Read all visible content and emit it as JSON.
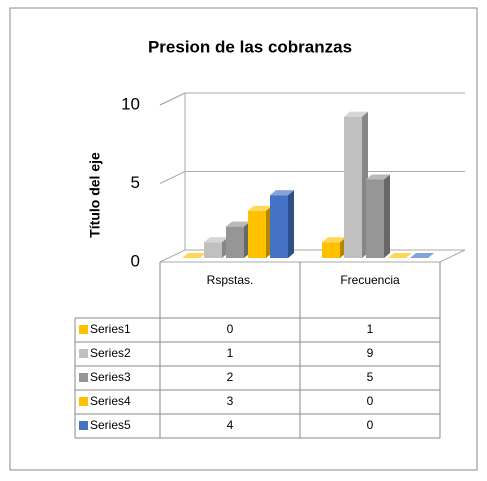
{
  "chart_data": {
    "type": "bar3d",
    "title": "Presion de las cobranzas",
    "y_label": "Título del eje",
    "categories": [
      "Rspstas.",
      "Frecuencia"
    ],
    "series": [
      {
        "name": "Series1",
        "color": "#ffc000",
        "values": [
          0,
          1
        ]
      },
      {
        "name": "Series2",
        "color": "#c0c0c0",
        "values": [
          1,
          9
        ]
      },
      {
        "name": "Series3",
        "color": "#969696",
        "values": [
          2,
          5
        ]
      },
      {
        "name": "Series4",
        "color": "#ffc000",
        "values": [
          3,
          0
        ]
      },
      {
        "name": "Series5",
        "color": "#4472c4",
        "values": [
          4,
          0
        ]
      }
    ],
    "ylim": [
      0,
      10
    ],
    "yticks": [
      0,
      5,
      10
    ],
    "grid": true,
    "data_table": true
  }
}
